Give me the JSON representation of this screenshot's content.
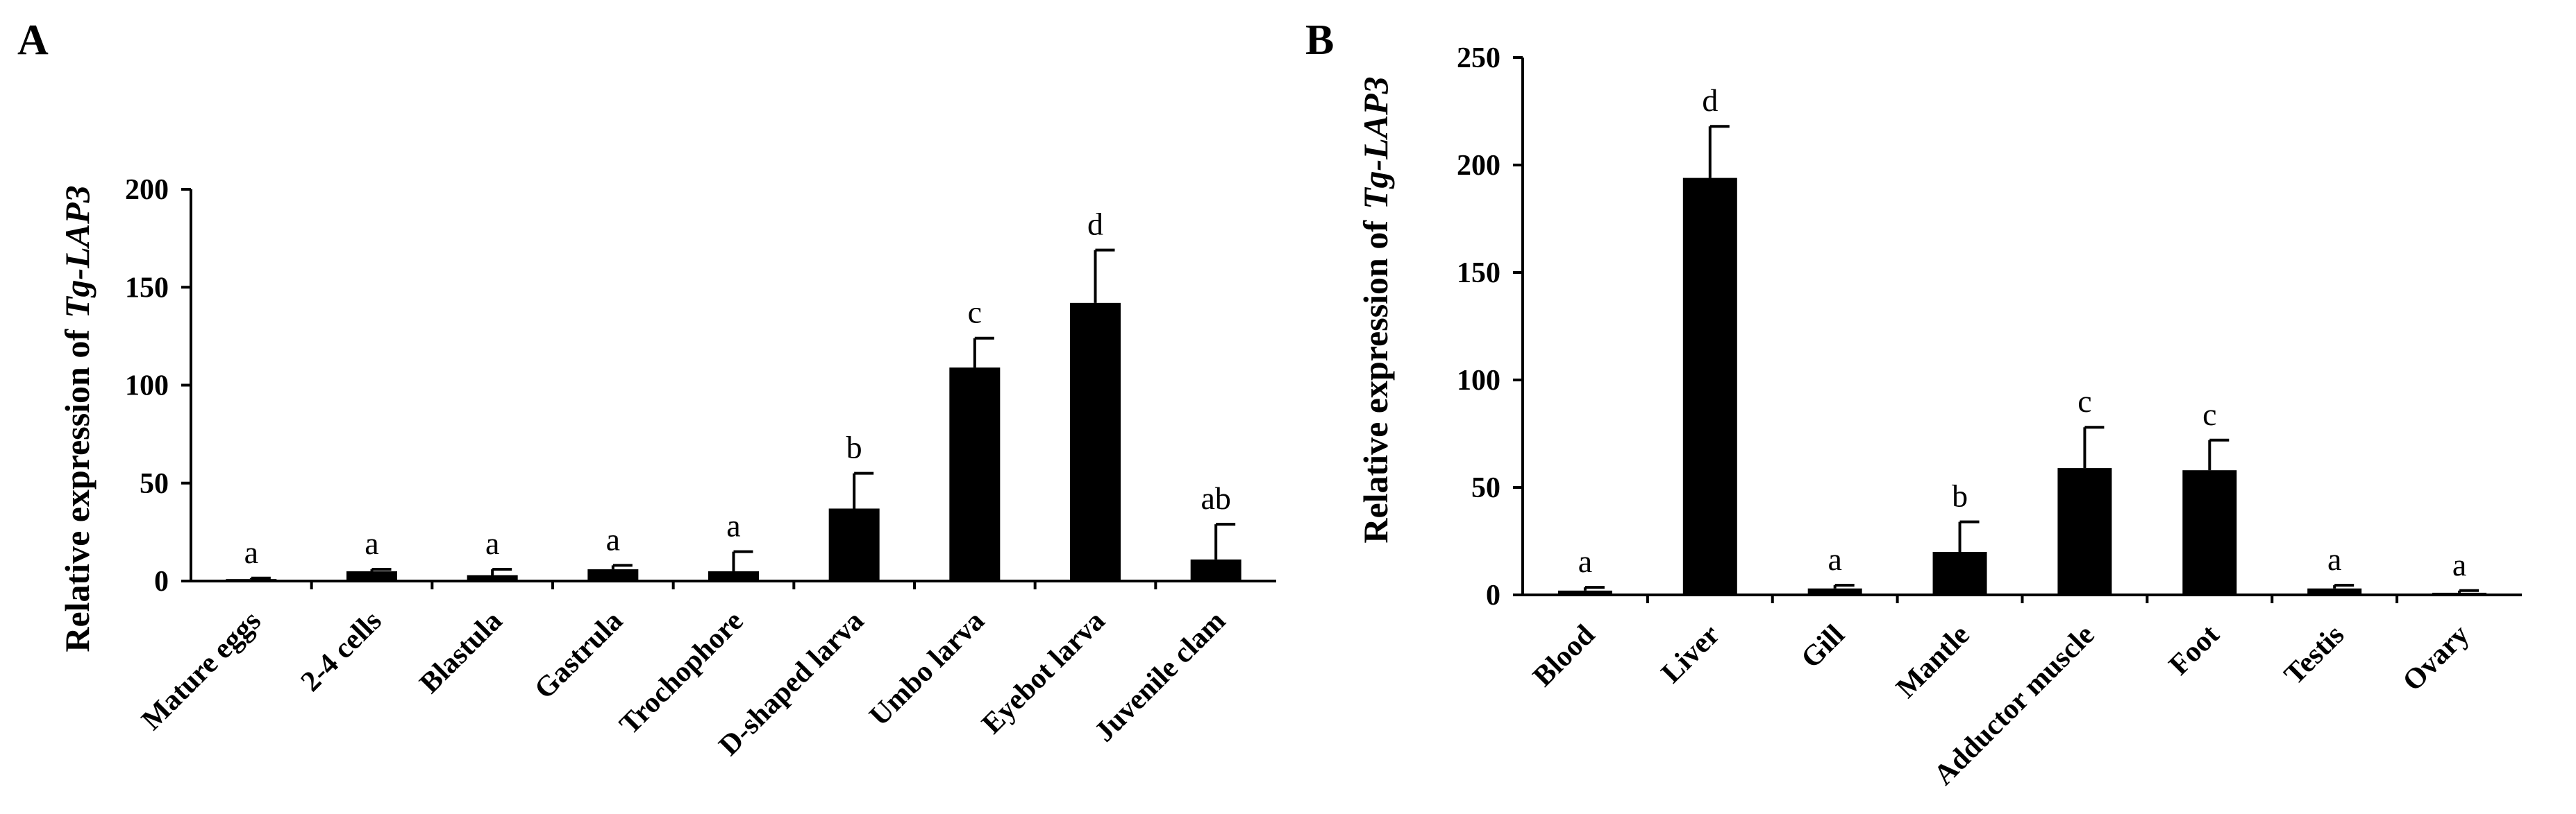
{
  "chart_data": [
    {
      "panel": "A",
      "type": "bar",
      "ylabel": "Relative expression of",
      "ylabel_gene": "Tg-LAP3",
      "ylim": [
        0,
        200
      ],
      "yticks": [
        0,
        50,
        100,
        150,
        200
      ],
      "categories": [
        "Mature eggs",
        "2-4 cells",
        "Blastula",
        "Gastrula",
        "Trochophore",
        "D-shaped larva",
        "Umbo larva",
        "Eyebot larva",
        "Juvenile clam"
      ],
      "values": [
        1,
        5,
        3,
        6,
        5,
        37,
        109,
        142,
        11
      ],
      "errors": [
        0.5,
        1,
        3,
        2,
        10,
        18,
        15,
        27,
        18
      ],
      "significance": [
        "a",
        "a",
        "a",
        "a",
        "a",
        "b",
        "c",
        "d",
        "ab"
      ],
      "color": "#000000"
    },
    {
      "panel": "B",
      "type": "bar",
      "ylabel": "Relative expression of",
      "ylabel_gene": "Tg-LAP3",
      "ylim": [
        0,
        250
      ],
      "yticks": [
        0,
        50,
        100,
        150,
        200,
        250
      ],
      "categories": [
        "Blood",
        "Liver",
        "Gill",
        "Mantle",
        "Adductor muscle",
        "Foot",
        "Testis",
        "Ovary"
      ],
      "values": [
        2,
        194,
        3,
        20,
        59,
        58,
        3,
        1
      ],
      "errors": [
        1.5,
        24,
        1.5,
        14,
        19,
        14,
        1.5,
        1
      ],
      "significance": [
        "a",
        "d",
        "a",
        "b",
        "c",
        "c",
        "a",
        "a"
      ],
      "color": "#000000"
    }
  ]
}
